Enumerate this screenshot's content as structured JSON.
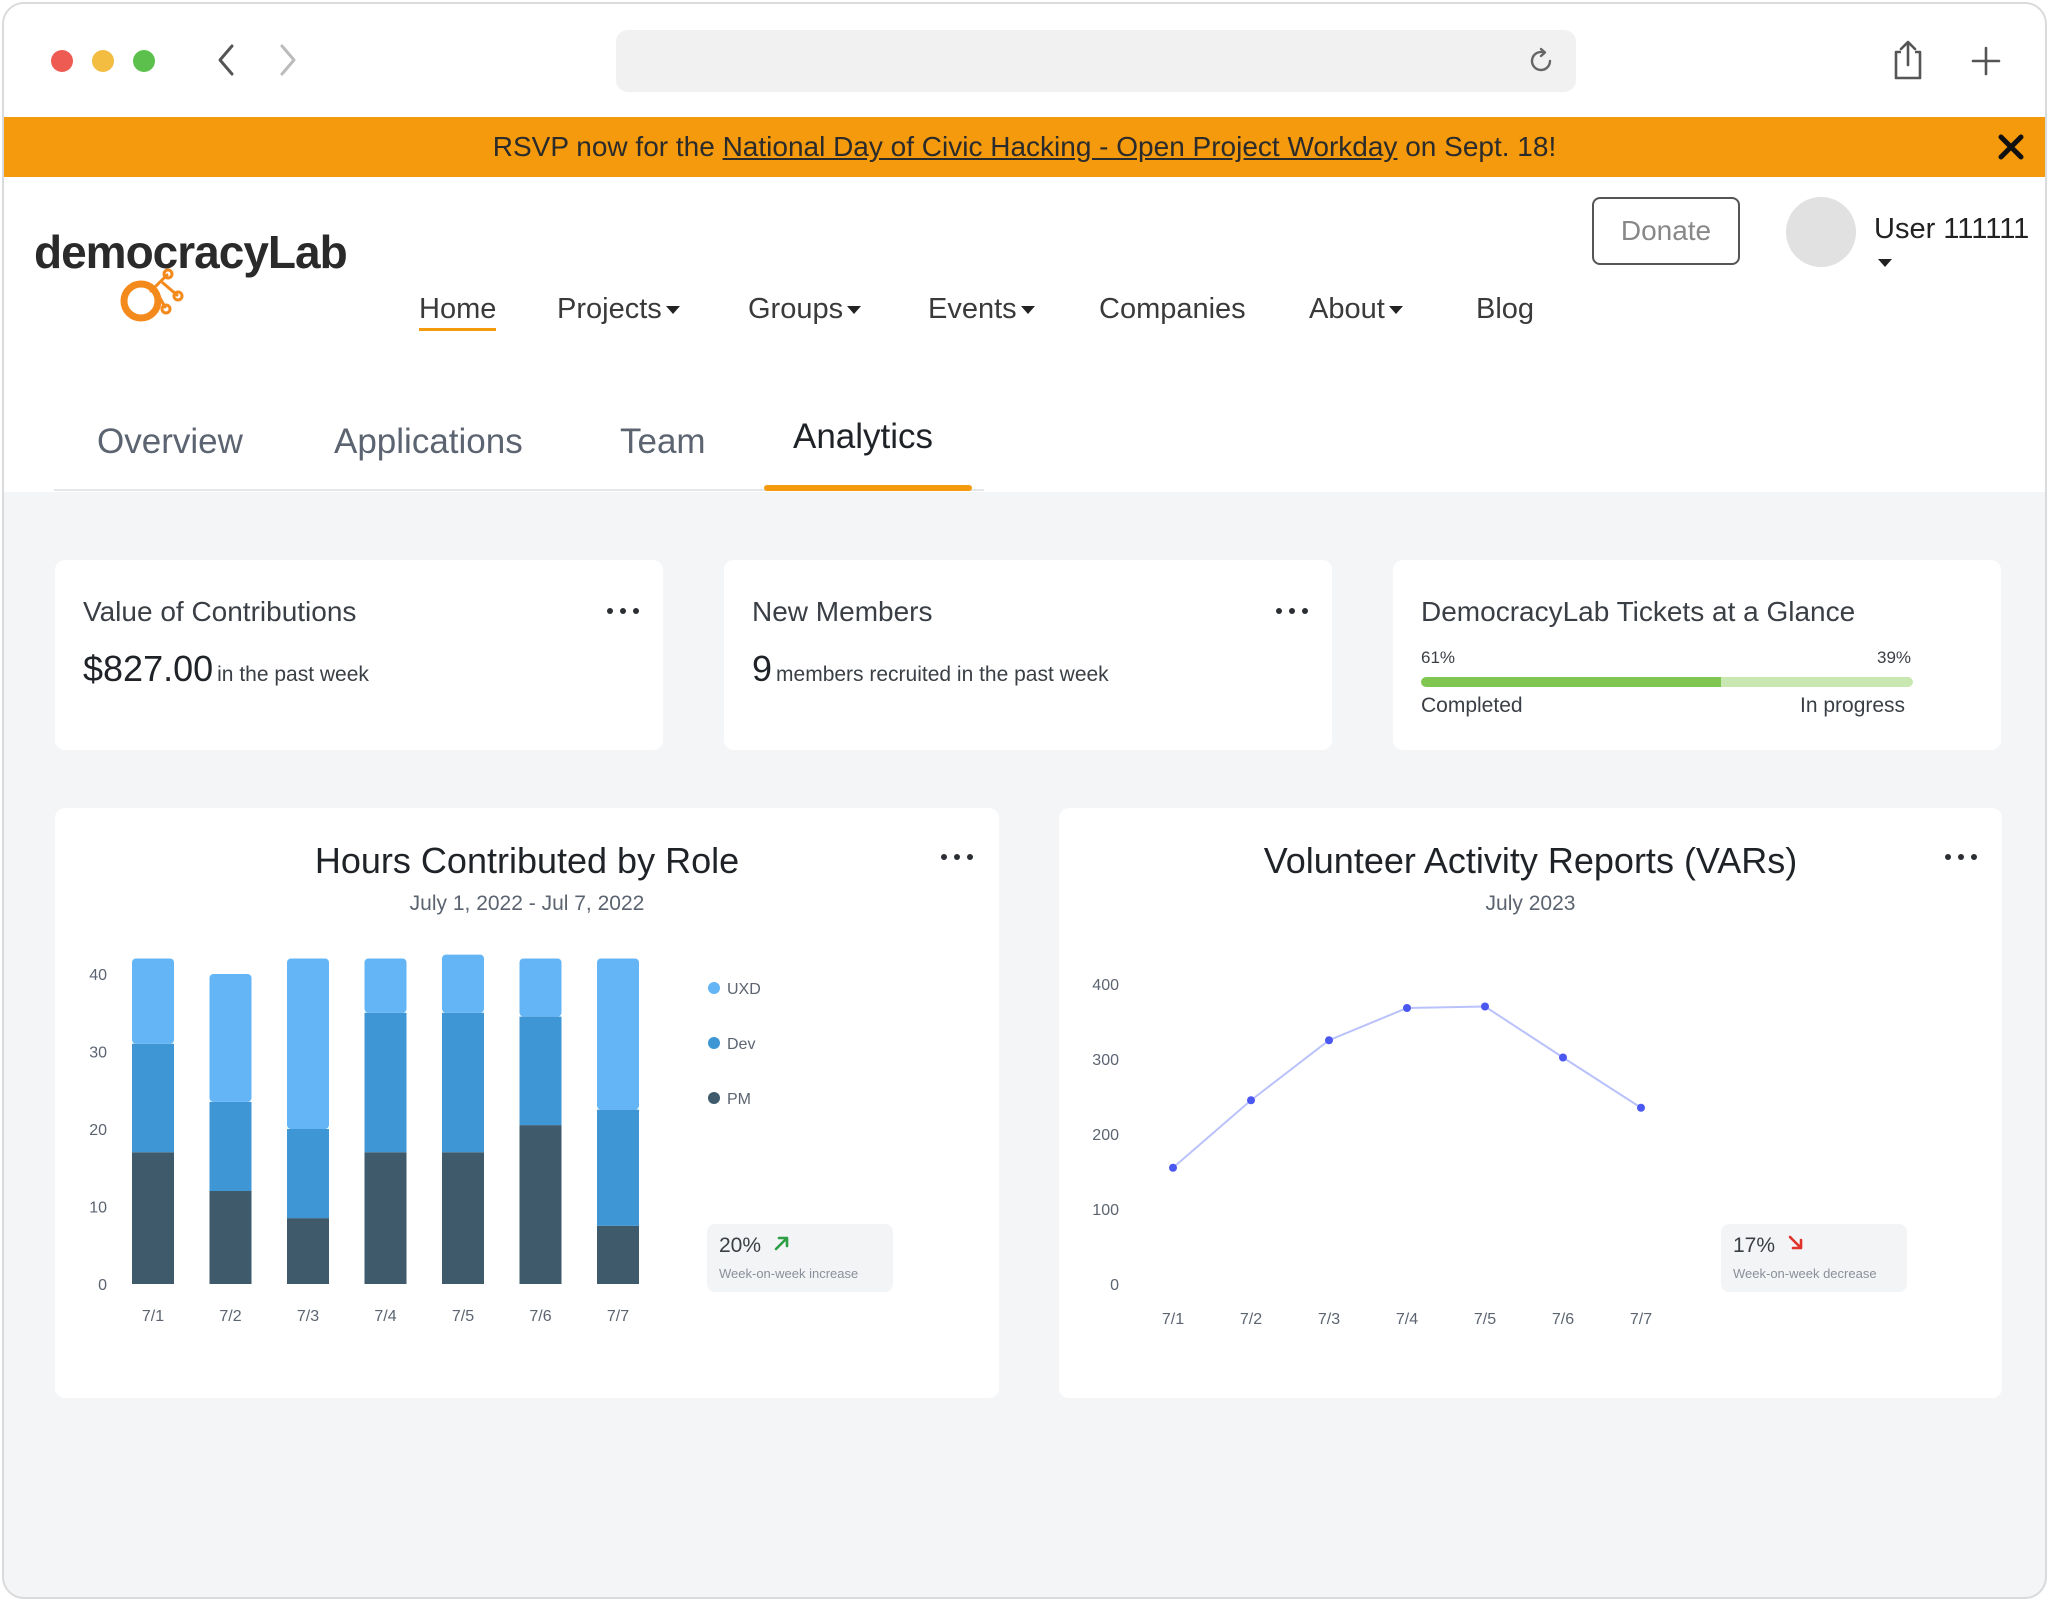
{
  "banner": {
    "prefix": "RSVP now for the ",
    "link": "National Day of Civic Hacking - Open Project Workday",
    "suffix": " on Sept. 18!"
  },
  "header": {
    "logo_text": "democracyLab",
    "donate_label": "Donate",
    "user_label": "User 111111"
  },
  "nav": {
    "items": [
      {
        "label": "Home"
      },
      {
        "label": "Projects"
      },
      {
        "label": "Groups"
      },
      {
        "label": "Events"
      },
      {
        "label": "Companies"
      },
      {
        "label": "About"
      },
      {
        "label": "Blog"
      }
    ]
  },
  "tabs": [
    {
      "label": "Overview"
    },
    {
      "label": "Applications"
    },
    {
      "label": "Team"
    },
    {
      "label": "Analytics"
    }
  ],
  "cards": {
    "contributions": {
      "title": "Value of Contributions",
      "value": "$827.00",
      "sub": "in the past week"
    },
    "members": {
      "title": "New Members",
      "value": "9",
      "sub": "members recruited in the past week"
    },
    "tickets": {
      "title": "DemocracyLab Tickets at a Glance",
      "completed_pct_label": "61%",
      "in_progress_pct_label": "39%",
      "completed_fraction": 0.61,
      "completed_label": "Completed",
      "in_progress_label": "In progress"
    }
  },
  "colors": {
    "accent": "#f49a0c",
    "uxd": "#64b5f6",
    "dev": "#3f96d4",
    "pm": "#3e5a6b",
    "line": "#4a57f0",
    "progress_done": "#7fc751",
    "progress_rest": "#c9e8b1"
  },
  "hours_chart": {
    "title": "Hours Contributed by Role",
    "subtitle": "July 1, 2022 - Jul 7, 2022",
    "kpi_value": "20%",
    "kpi_caption": "Week-on-week increase",
    "kpi_icon": "arrow-up-right-icon"
  },
  "var_chart": {
    "title": "Volunteer Activity Reports (VARs)",
    "subtitle": "July 2023",
    "kpi_value": "17%",
    "kpi_caption": "Week-on-week decrease",
    "kpi_icon": "arrow-down-right-icon"
  },
  "chart_data": [
    {
      "type": "bar",
      "stacked": true,
      "title": "Hours Contributed by Role",
      "subtitle": "July 1, 2022 - Jul 7, 2022",
      "categories": [
        "7/1",
        "7/2",
        "7/3",
        "7/4",
        "7/5",
        "7/6",
        "7/7"
      ],
      "series": [
        {
          "name": "PM",
          "values": [
            17,
            12,
            8.5,
            17,
            17,
            20.5,
            7.5
          ]
        },
        {
          "name": "Dev",
          "values": [
            14,
            11.5,
            11.5,
            18,
            18,
            14,
            15
          ]
        },
        {
          "name": "UXD",
          "values": [
            11,
            16.5,
            22,
            7,
            7.5,
            7.5,
            19.5
          ]
        }
      ],
      "yticks": [
        0,
        10,
        20,
        30,
        40
      ],
      "ylim": [
        0,
        40
      ],
      "legend": "right"
    },
    {
      "type": "line",
      "title": "Volunteer Activity Reports (VARs)",
      "subtitle": "July 2023",
      "categories": [
        "7/1",
        "7/2",
        "7/3",
        "7/4",
        "7/5",
        "7/6",
        "7/7"
      ],
      "values": [
        155,
        245,
        325,
        368,
        370,
        302,
        235
      ],
      "yticks": [
        0,
        100,
        200,
        300,
        400
      ],
      "ylim": [
        0,
        400
      ]
    }
  ]
}
